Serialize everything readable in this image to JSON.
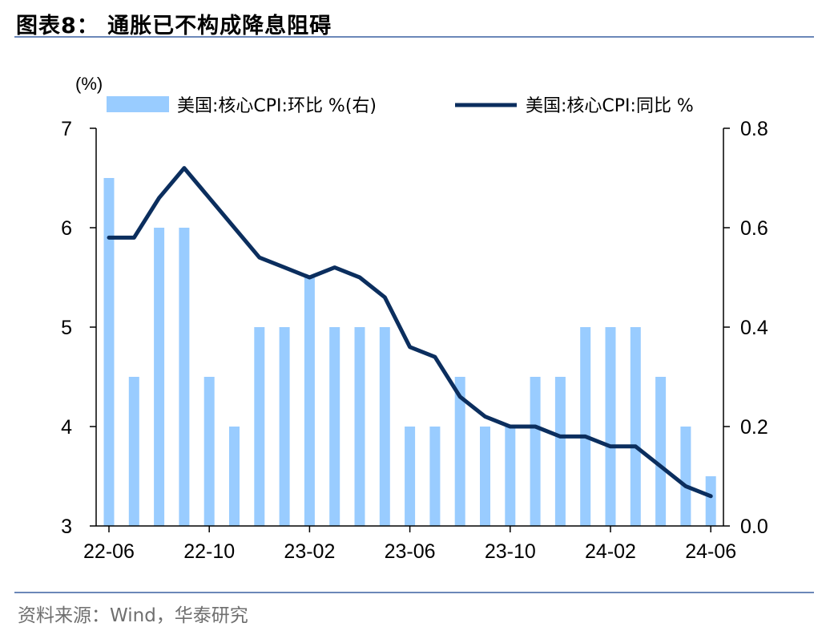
{
  "header": {
    "title": "图表8：  通胀已不构成降息阻碍"
  },
  "footer": {
    "source": "资料来源：Wind，华泰研究"
  },
  "chart_data": {
    "type": "bar+line",
    "unit_label": "(%)",
    "left_axis": {
      "ylim": [
        3,
        7
      ],
      "ticks": [
        "7",
        "6",
        "5",
        "4",
        "3"
      ],
      "tick_values": [
        7,
        6,
        5,
        4,
        3
      ]
    },
    "right_axis": {
      "ylim": [
        0,
        0.8
      ],
      "ticks": [
        "0.8",
        "0.6",
        "0.4",
        "0.2",
        "0.0"
      ],
      "tick_values": [
        0.8,
        0.6,
        0.4,
        0.2,
        0.0
      ]
    },
    "x": [
      "22-06",
      "22-07",
      "22-08",
      "22-09",
      "22-10",
      "22-11",
      "22-12",
      "23-01",
      "23-02",
      "23-03",
      "23-04",
      "23-05",
      "23-06",
      "23-07",
      "23-08",
      "23-09",
      "23-10",
      "23-11",
      "23-12",
      "24-01",
      "24-02",
      "24-03",
      "24-04",
      "24-05",
      "24-06"
    ],
    "x_tick_labels": [
      "22-06",
      "22-10",
      "23-02",
      "23-06",
      "23-10",
      "24-02",
      "24-06"
    ],
    "x_tick_indices": [
      0,
      4,
      8,
      12,
      16,
      20,
      24
    ],
    "series": [
      {
        "name": "美国:核心CPI:环比 %(右)",
        "type": "bar",
        "axis": "right",
        "color": "#99ccff",
        "values": [
          0.7,
          0.3,
          0.6,
          0.6,
          0.3,
          0.2,
          0.4,
          0.4,
          0.5,
          0.4,
          0.4,
          0.4,
          0.2,
          0.2,
          0.3,
          0.2,
          0.2,
          0.3,
          0.3,
          0.4,
          0.4,
          0.4,
          0.3,
          0.2,
          0.1
        ]
      },
      {
        "name": "美国:核心CPI:同比 %",
        "type": "line",
        "axis": "left",
        "color": "#0b2e5e",
        "values": [
          5.9,
          5.9,
          6.3,
          6.6,
          6.3,
          6.0,
          5.7,
          5.6,
          5.5,
          5.6,
          5.5,
          5.3,
          4.8,
          4.7,
          4.3,
          4.1,
          4.0,
          4.0,
          3.9,
          3.9,
          3.8,
          3.8,
          3.6,
          3.4,
          3.3
        ]
      }
    ],
    "legend_position": "top",
    "grid": false
  }
}
